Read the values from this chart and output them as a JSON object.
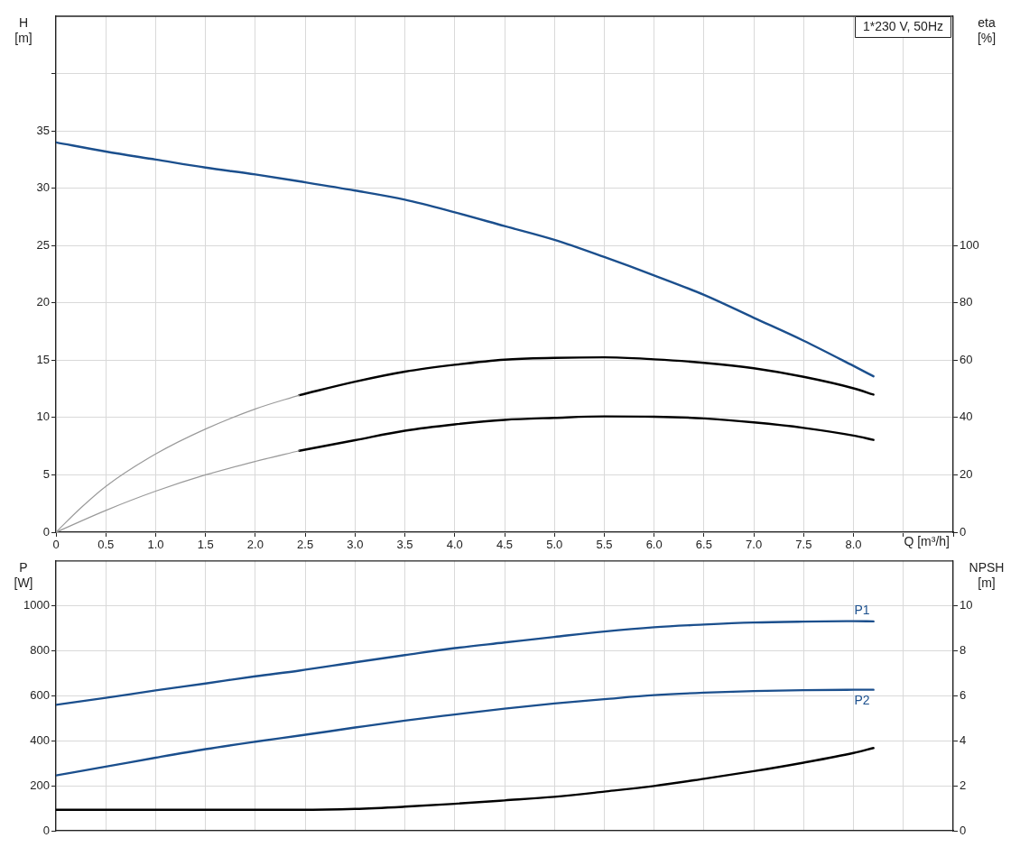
{
  "chart_data": [
    {
      "type": "line",
      "xlabel": "Q [m³/h]",
      "ylabel": "H [m]",
      "y2label": "eta [%]",
      "annotations": [
        "1*230 V, 50Hz"
      ],
      "xlim": [
        0,
        9
      ],
      "xticks": [
        0,
        0.5,
        {
          "value": 1,
          "label": "1.0"
        },
        1.5,
        {
          "value": 2,
          "label": "2.0"
        },
        2.5,
        {
          "value": 3,
          "label": "3.0"
        },
        3.5,
        {
          "value": 4,
          "label": "4.0"
        },
        4.5,
        {
          "value": 5,
          "label": "5.0"
        },
        5.5,
        {
          "value": 6,
          "label": "6.0"
        },
        6.5,
        {
          "value": 7,
          "label": "7.0"
        },
        7.5,
        {
          "value": 8,
          "label": "8.0"
        },
        {
          "value": 8.5,
          "label": null
        },
        {
          "value": 9,
          "label": null
        }
      ],
      "ylim": [
        0,
        45
      ],
      "yticks": [
        0,
        5,
        10,
        15,
        20,
        25,
        30,
        35,
        {
          "value": 40,
          "label": null
        }
      ],
      "y2lim": [
        0,
        180
      ],
      "y2ticks": [
        0,
        20,
        40,
        60,
        80,
        100
      ],
      "grid": true,
      "series": [
        {
          "color": "#1b4f8d",
          "x": [
            0,
            0.5,
            1,
            1.5,
            2,
            2.44,
            3,
            3.5,
            4,
            4.5,
            5,
            5.5,
            6,
            6.5,
            7,
            7.5,
            8,
            8.2
          ],
          "values": [
            34.0,
            33.2,
            32.5,
            31.8,
            31.2,
            30.6,
            29.8,
            29.0,
            27.9,
            26.7,
            25.5,
            24.0,
            22.4,
            20.7,
            18.7,
            16.7,
            14.5,
            13.6
          ]
        },
        {
          "color": "#9a9a9a",
          "axis": "y2",
          "x": [
            0,
            0.25,
            0.5,
            1,
            1.5,
            2,
            2.44
          ],
          "values": [
            0,
            8.5,
            16,
            27.3,
            36,
            43,
            47.8
          ]
        },
        {
          "color": "#000000",
          "axis": "y2",
          "x": [
            2.44,
            3,
            3.5,
            4,
            4.5,
            5,
            5.5,
            6,
            6.5,
            7,
            7.5,
            8,
            8.2
          ],
          "values": [
            47.8,
            52.5,
            56,
            58.4,
            60.2,
            60.8,
            61,
            60.3,
            59.1,
            57.2,
            54.2,
            50.2,
            48
          ]
        },
        {
          "color": "#9a9a9a",
          "axis": "y2",
          "x": [
            0,
            0.5,
            1,
            1.5,
            2,
            2.44
          ],
          "values": [
            0,
            7.6,
            14.3,
            20,
            24.7,
            28.4
          ]
        },
        {
          "color": "#000000",
          "axis": "y2",
          "x": [
            2.44,
            3,
            3.5,
            4,
            4.5,
            5,
            5.5,
            6,
            6.5,
            7,
            7.5,
            8,
            8.2
          ],
          "values": [
            28.4,
            32.1,
            35.4,
            37.6,
            39.2,
            39.9,
            40.4,
            40.3,
            39.7,
            38.3,
            36.4,
            33.7,
            32.2
          ]
        }
      ]
    },
    {
      "type": "line",
      "ylabel": "P [W]",
      "y2label": "NPSH [m]",
      "tick_labels": "y",
      "xlim": [
        0,
        9
      ],
      "xticks": [
        0,
        0.5,
        1,
        1.5,
        2,
        2.5,
        3,
        3.5,
        4,
        4.5,
        5,
        5.5,
        6,
        6.5,
        7,
        7.5,
        8,
        8.5,
        9
      ],
      "ylim": [
        0,
        1200
      ],
      "yticks": [
        0,
        200,
        400,
        600,
        800,
        1000
      ],
      "y2lim": [
        0,
        12
      ],
      "y2ticks": [
        0,
        2,
        4,
        6,
        8,
        10
      ],
      "grid": true,
      "series": [
        {
          "name": "P1",
          "color": "#1b4f8d",
          "x": [
            0,
            0.5,
            1,
            1.5,
            2,
            2.44,
            3,
            3.5,
            4,
            4.5,
            5,
            5.5,
            6,
            6.5,
            7,
            7.5,
            8,
            8.2
          ],
          "values": [
            560,
            591,
            624,
            655,
            687,
            712,
            749,
            781,
            812,
            837,
            862,
            886,
            905,
            917,
            926,
            930,
            932,
            931
          ]
        },
        {
          "name": "P2",
          "color": "#1b4f8d",
          "x": [
            0,
            0.5,
            1,
            1.5,
            2,
            2.44,
            3,
            3.5,
            4,
            4.5,
            5,
            5.5,
            6,
            6.5,
            7,
            7.5,
            8,
            8.2
          ],
          "values": [
            246,
            285,
            325,
            363,
            396,
            423,
            459,
            490,
            517,
            543,
            566,
            585,
            603,
            614,
            621,
            625,
            627,
            627
          ]
        },
        {
          "color": "#000000",
          "axis": "y2",
          "x": [
            0,
            2.44,
            3,
            3.5,
            4,
            4.5,
            5,
            5.5,
            6,
            6.5,
            7,
            7.5,
            8,
            8.2
          ],
          "values": [
            0.93,
            0.93,
            0.97,
            1.07,
            1.2,
            1.35,
            1.51,
            1.74,
            1.99,
            2.31,
            2.65,
            3.03,
            3.46,
            3.68
          ]
        }
      ]
    }
  ]
}
